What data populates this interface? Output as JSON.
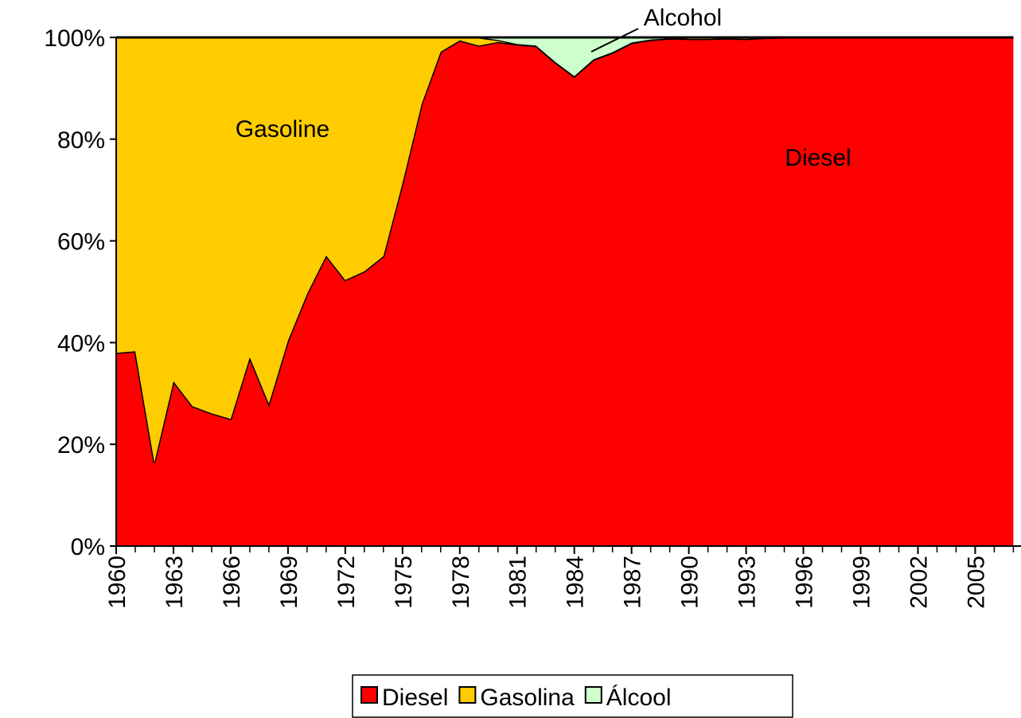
{
  "chart_data": {
    "type": "stacked-area",
    "x": [
      1960,
      1961,
      1962,
      1963,
      1964,
      1965,
      1966,
      1967,
      1968,
      1969,
      1970,
      1971,
      1972,
      1973,
      1974,
      1975,
      1976,
      1977,
      1978,
      1979,
      1980,
      1981,
      1982,
      1983,
      1984,
      1985,
      1986,
      1987,
      1988,
      1989,
      1990,
      1991,
      1992,
      1993,
      1994,
      1995,
      1996,
      1997,
      1998,
      1999,
      2000,
      2001,
      2002,
      2003,
      2004,
      2005,
      2006,
      2007
    ],
    "series": [
      {
        "name": "Diesel",
        "color": "#ff0000",
        "values": [
          38.0,
          38.3,
          16.4,
          32.4,
          27.5,
          26.1,
          25.0,
          37.1,
          28.0,
          40.4,
          49.6,
          57.1,
          52.3,
          54.0,
          57.0,
          71.4,
          86.9,
          97.2,
          99.4,
          98.4,
          99.1,
          98.6,
          98.3,
          95.1,
          92.3,
          95.6,
          97.0,
          98.9,
          99.5,
          99.8,
          99.7,
          99.7,
          99.8,
          99.7,
          99.9,
          100,
          100,
          100,
          100,
          100,
          100,
          100,
          100,
          100,
          100,
          100,
          100,
          100
        ]
      },
      {
        "name": "Gasolina",
        "color": "#ffcc00",
        "values": [
          62.0,
          61.7,
          83.6,
          67.6,
          72.5,
          73.9,
          75.0,
          62.9,
          72.0,
          59.6,
          50.4,
          42.9,
          47.7,
          46.0,
          43.0,
          28.6,
          13.1,
          2.8,
          0.6,
          1.6,
          0.4,
          0.1,
          0.1,
          0.1,
          0.1,
          0.1,
          0.1,
          0.1,
          0.1,
          0,
          0.3,
          0.3,
          0.2,
          0.3,
          0.1,
          0,
          0,
          0,
          0,
          0,
          0,
          0,
          0,
          0,
          0,
          0,
          0,
          0
        ]
      },
      {
        "name": "Álcool",
        "color": "#ccffcc",
        "values": [
          0,
          0,
          0,
          0,
          0,
          0,
          0,
          0,
          0,
          0,
          0,
          0,
          0,
          0,
          0,
          0,
          0,
          0,
          0,
          0,
          0.5,
          1.3,
          1.6,
          4.8,
          7.6,
          4.3,
          2.9,
          1.0,
          0.4,
          0.2,
          0,
          0,
          0,
          0,
          0,
          0,
          0,
          0,
          0,
          0,
          0,
          0,
          0,
          0,
          0,
          0,
          0,
          0
        ]
      }
    ],
    "xlim": [
      1960,
      2007.4
    ],
    "xticks": [
      1960,
      1963,
      1966,
      1969,
      1972,
      1975,
      1978,
      1981,
      1984,
      1987,
      1990,
      1993,
      1996,
      1999,
      2002,
      2005
    ],
    "ylim": [
      0,
      100
    ],
    "yticks": [
      {
        "value": 0,
        "label": "0%"
      },
      {
        "value": 20,
        "label": "20%"
      },
      {
        "value": 40,
        "label": "40%"
      },
      {
        "value": 60,
        "label": "60%"
      },
      {
        "value": 80,
        "label": "80%"
      },
      {
        "value": 100,
        "label": "100%"
      }
    ],
    "annotations": [
      "Gasoline",
      "Diesel",
      "Alcohol"
    ]
  }
}
